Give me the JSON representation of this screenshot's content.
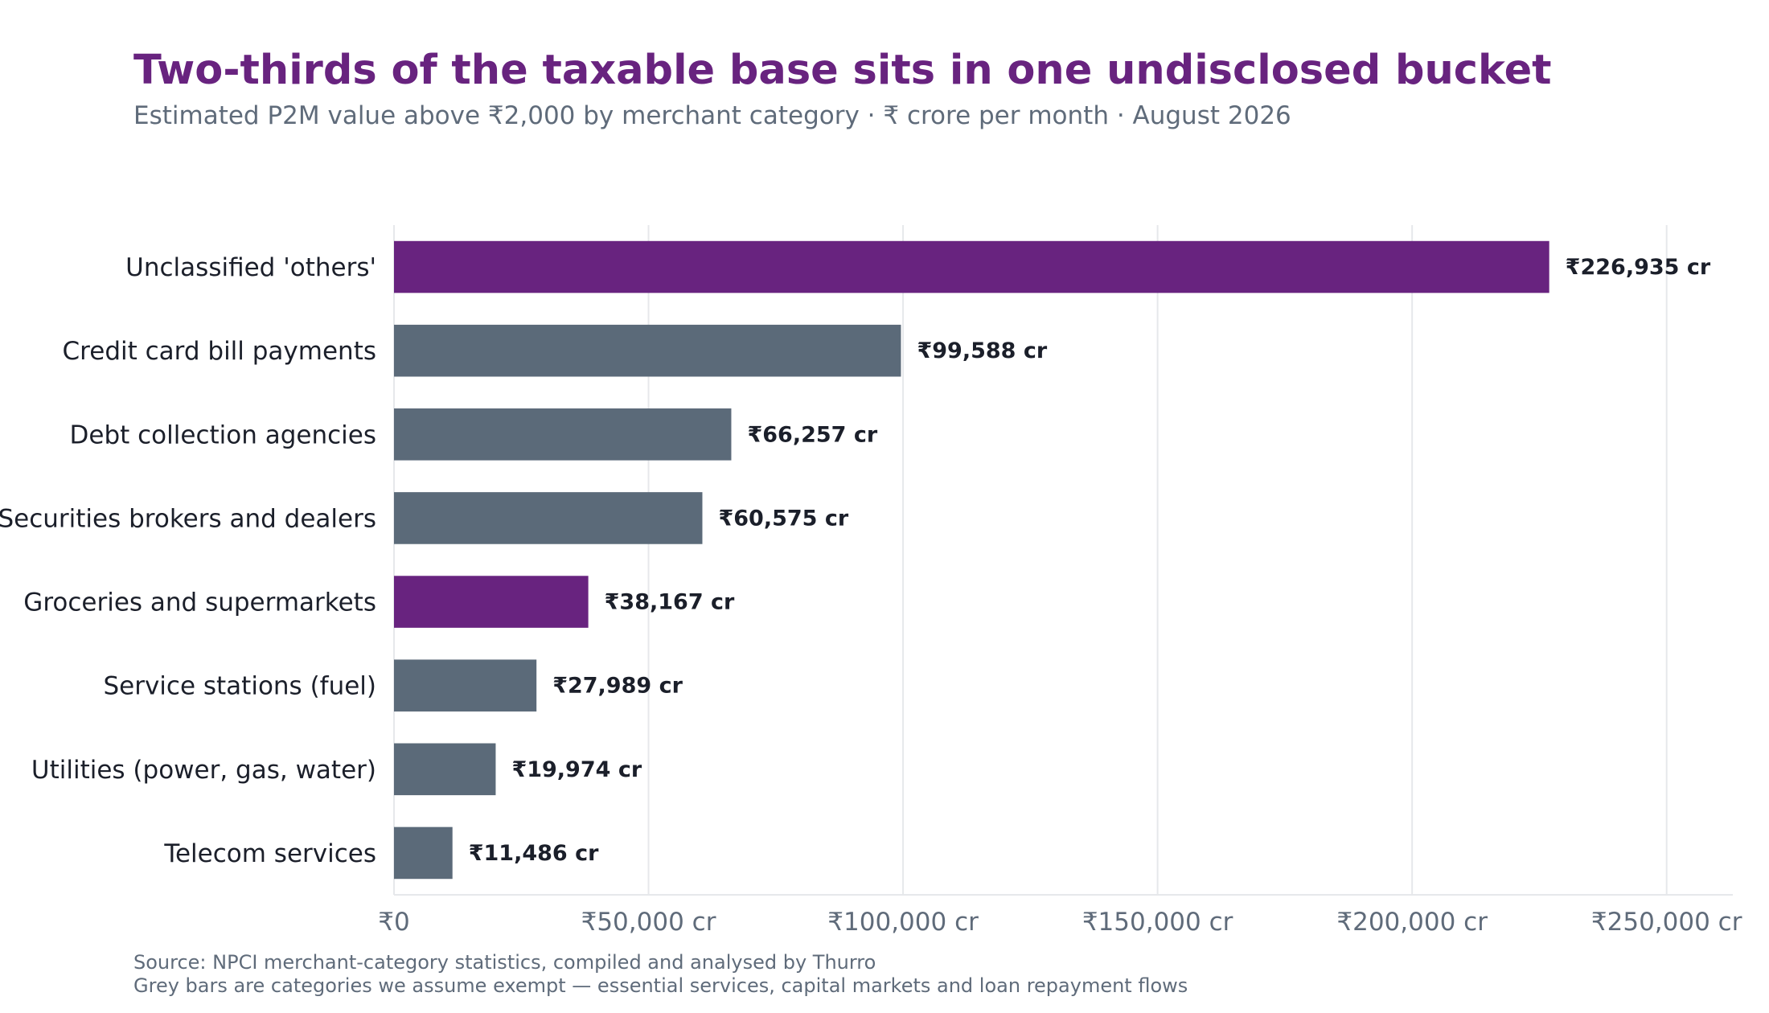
{
  "chart_data": {
    "type": "bar",
    "orientation": "horizontal",
    "title": "Two-thirds of the taxable base sits in one undisclosed bucket",
    "subtitle": "Estimated P2M value above ₹2,000 by merchant category · ₹ crore per month · August 2026",
    "categories": [
      "Unclassified 'others'",
      "Credit card bill payments",
      "Debt collection agencies",
      "Securities brokers and dealers",
      "Groceries and supermarkets",
      "Service stations (fuel)",
      "Utilities (power, gas, water)",
      "Telecom services"
    ],
    "values": [
      226935,
      99588,
      66257,
      60575,
      38167,
      27989,
      19974,
      11486
    ],
    "data_labels": [
      "₹226,935 cr",
      "₹99,588 cr",
      "₹66,257 cr",
      "₹60,575 cr",
      "₹38,167 cr",
      "₹27,989 cr",
      "₹19,974 cr",
      "₹11,486 cr"
    ],
    "bar_colors": [
      "#68237f",
      "#5b6a79",
      "#5b6a79",
      "#5b6a79",
      "#68237f",
      "#5b6a79",
      "#5b6a79",
      "#5b6a79"
    ],
    "xlim": [
      0,
      263000
    ],
    "x_ticks": [
      0,
      50000,
      100000,
      150000,
      200000,
      250000
    ],
    "x_tick_labels": [
      "₹0",
      "₹50,000 cr",
      "₹100,000 cr",
      "₹150,000 cr",
      "₹200,000 cr",
      "₹250,000 cr"
    ],
    "xlabel": "",
    "ylabel": "",
    "grid": "vertical",
    "legend": "none"
  },
  "colors": {
    "highlight": "#68237f",
    "exempt": "#5b6a79",
    "title": "#68237f",
    "muted_text": "#5f6b7a",
    "label_text": "#1b1f2a",
    "gridline": "#e6e8eb"
  },
  "notes": {
    "source": "Source: NPCI merchant-category statistics, compiled and analysed by Thurro",
    "exempt": "Grey bars are categories we assume exempt — essential services, capital markets and loan repayment flows"
  }
}
